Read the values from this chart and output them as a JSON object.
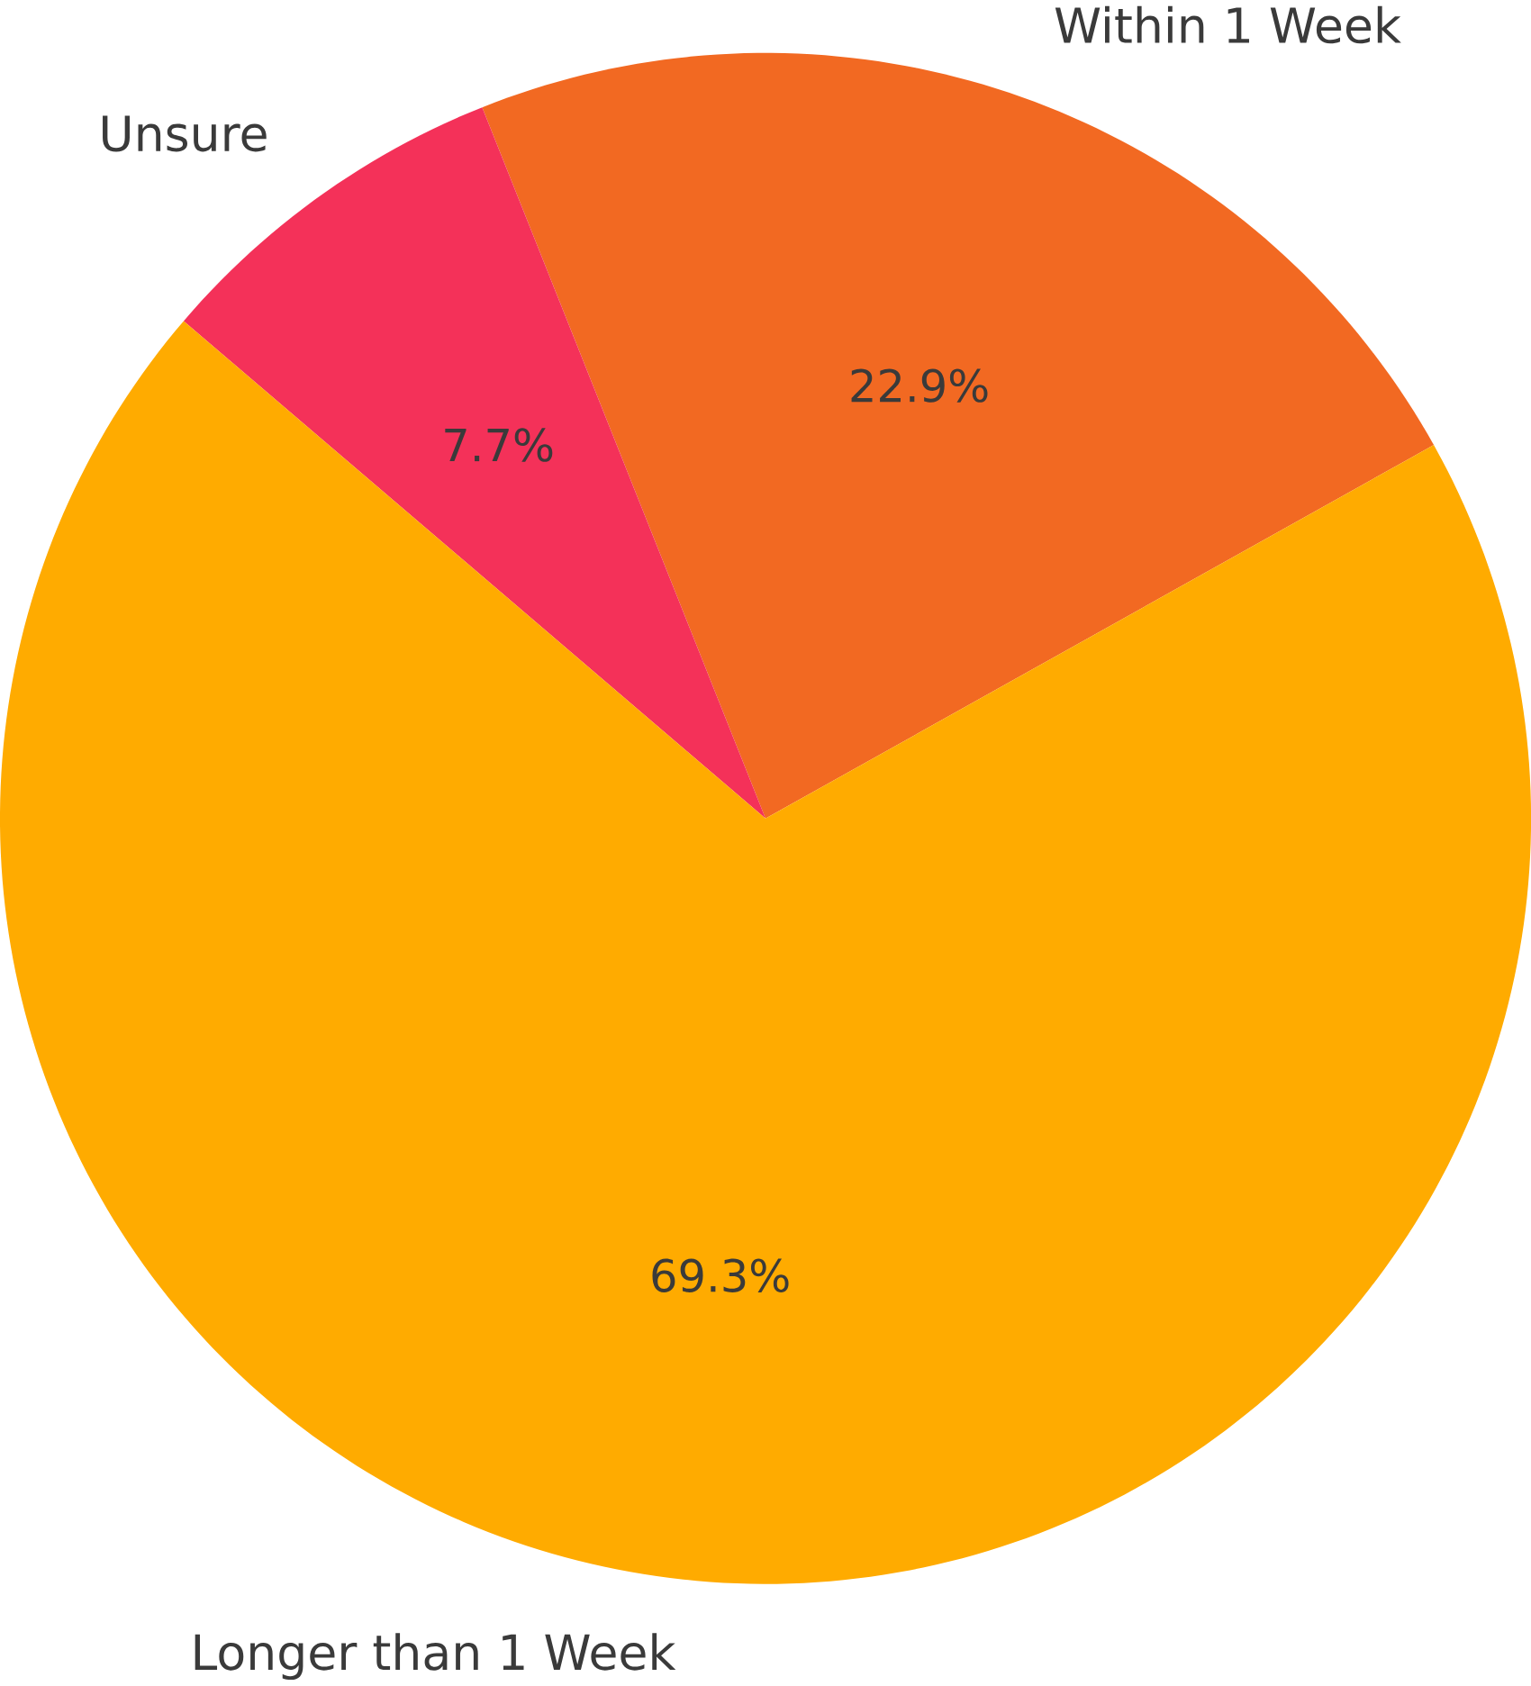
{
  "chart_data": {
    "type": "pie",
    "categories": [
      "Within 1 Week",
      "Unsure",
      "Longer than 1 Week"
    ],
    "values": [
      22.9,
      7.7,
      69.3
    ],
    "value_labels": [
      "22.9%",
      "7.7%",
      "69.3%"
    ],
    "colors": [
      "#f26922",
      "#f43159",
      "#ffab00"
    ]
  }
}
